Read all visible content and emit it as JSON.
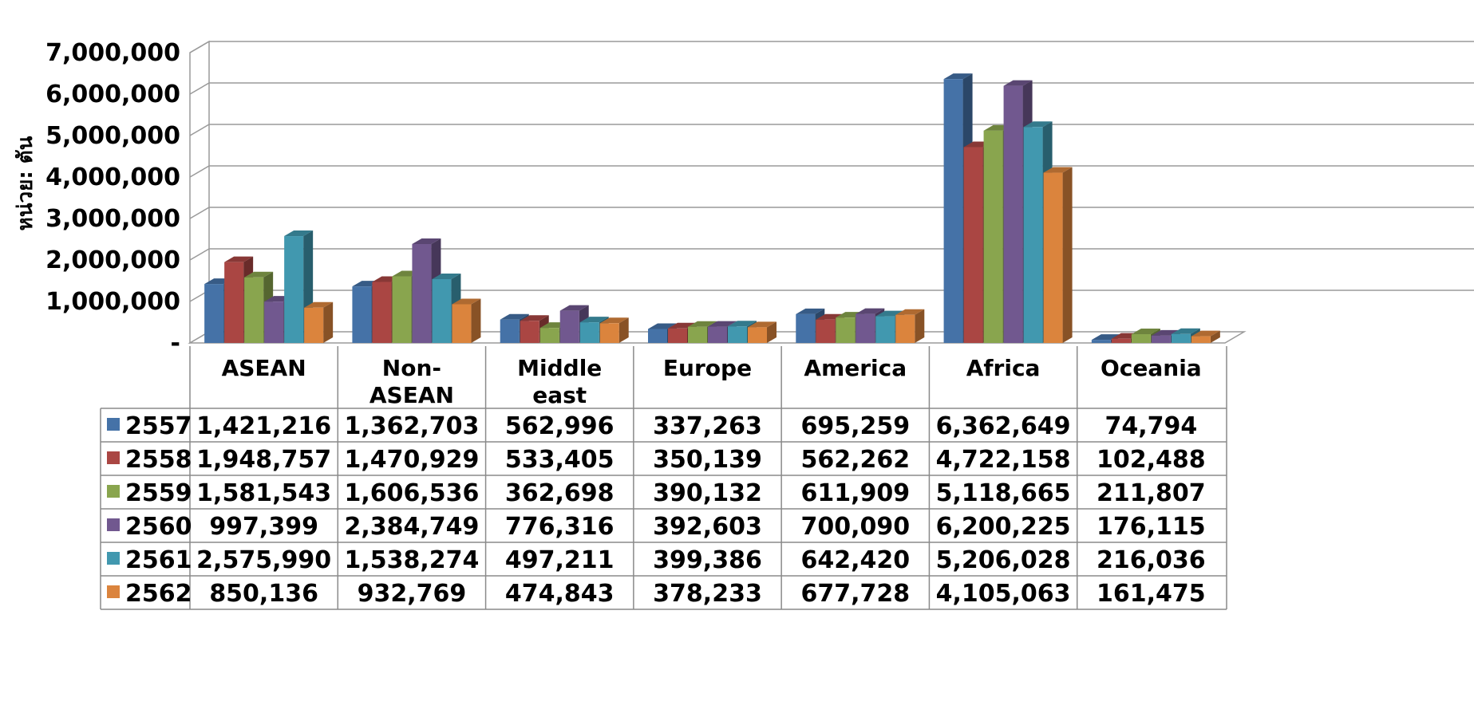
{
  "chart_data": {
    "type": "bar",
    "ylabel": "หน่วย: ตัน",
    "ylim": [
      0,
      7000000
    ],
    "yticks": [
      "-",
      "1,000,000",
      "2,000,000",
      "3,000,000",
      "4,000,000",
      "5,000,000",
      "6,000,000",
      "7,000,000"
    ],
    "grid": true,
    "legend_placement": "data table, left column",
    "categories": [
      [
        "ASEAN"
      ],
      [
        "Non-",
        "ASEAN"
      ],
      [
        "Middle",
        "east"
      ],
      [
        "Europe"
      ],
      [
        "America"
      ],
      [
        "Africa"
      ],
      [
        "Oceania"
      ]
    ],
    "series": [
      {
        "name": "2557",
        "color": "#4572A7",
        "values": [
          1421216,
          1362703,
          562996,
          337263,
          695259,
          6362649,
          74794
        ],
        "labels": [
          "1,421,216",
          "1,362,703",
          "562,996",
          "337,263",
          "695,259",
          "6,362,649",
          "74,794"
        ]
      },
      {
        "name": "2558",
        "color": "#AA4643",
        "values": [
          1948757,
          1470929,
          533405,
          350139,
          562262,
          4722158,
          102488
        ],
        "labels": [
          "1,948,757",
          "1,470,929",
          "533,405",
          "350,139",
          "562,262",
          "4,722,158",
          "102,488"
        ]
      },
      {
        "name": "2559",
        "color": "#89A54E",
        "values": [
          1581543,
          1606536,
          362698,
          390132,
          611909,
          5118665,
          211807
        ],
        "labels": [
          "1,581,543",
          "1,606,536",
          "362,698",
          "390,132",
          "611,909",
          "5,118,665",
          "211,807"
        ]
      },
      {
        "name": "2560",
        "color": "#71588F",
        "values": [
          997399,
          2384749,
          776316,
          392603,
          700090,
          6200225,
          176115
        ],
        "labels": [
          "997,399",
          "2,384,749",
          "776,316",
          "392,603",
          "700,090",
          "6,200,225",
          "176,115"
        ]
      },
      {
        "name": "2561",
        "color": "#4198AF",
        "values": [
          2575990,
          1538274,
          497211,
          399386,
          642420,
          5206028,
          216036
        ],
        "labels": [
          "2,575,990",
          "1,538,274",
          "497,211",
          "399,386",
          "642,420",
          "5,206,028",
          "216,036"
        ]
      },
      {
        "name": "2562",
        "color": "#DB843D",
        "values": [
          850136,
          932769,
          474843,
          378233,
          677728,
          4105063,
          161475
        ],
        "labels": [
          "850,136",
          "932,769",
          "474,843",
          "378,233",
          "677,728",
          "4,105,063",
          "161,475"
        ]
      }
    ]
  }
}
